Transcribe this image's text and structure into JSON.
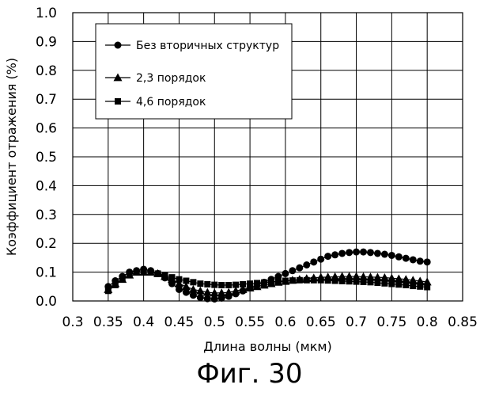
{
  "figure": {
    "caption": "Фиг. 30"
  },
  "chart_data": {
    "type": "line",
    "title": "",
    "xlabel": "Длина волны (мкм)",
    "ylabel": "Коэффициент отражения (%)",
    "xlim": [
      0.3,
      0.85
    ],
    "ylim": [
      0.0,
      1.0
    ],
    "xticks": [
      "0.3",
      "0.35",
      "0.4",
      "0.45",
      "0.5",
      "0.55",
      "0.6",
      "0.65",
      "0.7",
      "0.75",
      "0.8",
      "0.85"
    ],
    "yticks": [
      "0.0",
      "0.1",
      "0.2",
      "0.3",
      "0.4",
      "0.5",
      "0.6",
      "0.7",
      "0.8",
      "0.9",
      "1.0"
    ],
    "grid": true,
    "legend": {
      "placement": "top-left",
      "boxed": true
    },
    "series": [
      {
        "name": "Без вторичных структур",
        "marker": "circle",
        "x": [
          0.35,
          0.36,
          0.37,
          0.38,
          0.39,
          0.4,
          0.41,
          0.42,
          0.43,
          0.44,
          0.45,
          0.46,
          0.47,
          0.48,
          0.49,
          0.5,
          0.51,
          0.52,
          0.53,
          0.54,
          0.55,
          0.56,
          0.57,
          0.58,
          0.59,
          0.6,
          0.61,
          0.62,
          0.63,
          0.64,
          0.65,
          0.66,
          0.67,
          0.68,
          0.69,
          0.7,
          0.71,
          0.72,
          0.73,
          0.74,
          0.75,
          0.76,
          0.77,
          0.78,
          0.79,
          0.8
        ],
        "y": [
          0.05,
          0.07,
          0.085,
          0.1,
          0.105,
          0.11,
          0.105,
          0.095,
          0.08,
          0.06,
          0.04,
          0.03,
          0.02,
          0.012,
          0.008,
          0.007,
          0.01,
          0.016,
          0.025,
          0.035,
          0.045,
          0.055,
          0.065,
          0.075,
          0.085,
          0.095,
          0.105,
          0.115,
          0.125,
          0.135,
          0.145,
          0.155,
          0.16,
          0.165,
          0.168,
          0.17,
          0.17,
          0.168,
          0.165,
          0.162,
          0.158,
          0.153,
          0.148,
          0.143,
          0.138,
          0.135
        ]
      },
      {
        "name": "2,3 порядок",
        "marker": "triangle",
        "x": [
          0.35,
          0.36,
          0.37,
          0.38,
          0.39,
          0.4,
          0.41,
          0.42,
          0.43,
          0.44,
          0.45,
          0.46,
          0.47,
          0.48,
          0.49,
          0.5,
          0.51,
          0.52,
          0.53,
          0.54,
          0.55,
          0.56,
          0.57,
          0.58,
          0.59,
          0.6,
          0.61,
          0.62,
          0.63,
          0.64,
          0.65,
          0.66,
          0.67,
          0.68,
          0.69,
          0.7,
          0.71,
          0.72,
          0.73,
          0.74,
          0.75,
          0.76,
          0.77,
          0.78,
          0.79,
          0.8
        ],
        "y": [
          0.04,
          0.06,
          0.075,
          0.09,
          0.1,
          0.1,
          0.1,
          0.095,
          0.085,
          0.075,
          0.06,
          0.05,
          0.04,
          0.035,
          0.03,
          0.028,
          0.028,
          0.03,
          0.035,
          0.04,
          0.045,
          0.05,
          0.055,
          0.06,
          0.065,
          0.068,
          0.072,
          0.075,
          0.078,
          0.08,
          0.082,
          0.083,
          0.084,
          0.085,
          0.085,
          0.085,
          0.084,
          0.083,
          0.082,
          0.081,
          0.079,
          0.077,
          0.075,
          0.072,
          0.069,
          0.066
        ]
      },
      {
        "name": "4,6 порядок",
        "marker": "square",
        "x": [
          0.35,
          0.36,
          0.37,
          0.38,
          0.39,
          0.4,
          0.41,
          0.42,
          0.43,
          0.44,
          0.45,
          0.46,
          0.47,
          0.48,
          0.49,
          0.5,
          0.51,
          0.52,
          0.53,
          0.54,
          0.55,
          0.56,
          0.57,
          0.58,
          0.59,
          0.6,
          0.61,
          0.62,
          0.63,
          0.64,
          0.65,
          0.66,
          0.67,
          0.68,
          0.69,
          0.7,
          0.71,
          0.72,
          0.73,
          0.74,
          0.75,
          0.76,
          0.77,
          0.78,
          0.79,
          0.8
        ],
        "y": [
          0.035,
          0.055,
          0.075,
          0.09,
          0.1,
          0.102,
          0.1,
          0.095,
          0.09,
          0.082,
          0.075,
          0.07,
          0.065,
          0.06,
          0.058,
          0.056,
          0.055,
          0.055,
          0.056,
          0.058,
          0.06,
          0.062,
          0.064,
          0.066,
          0.068,
          0.07,
          0.071,
          0.072,
          0.072,
          0.072,
          0.072,
          0.071,
          0.07,
          0.069,
          0.068,
          0.067,
          0.066,
          0.065,
          0.063,
          0.061,
          0.059,
          0.057,
          0.055,
          0.052,
          0.05,
          0.048
        ]
      }
    ]
  }
}
